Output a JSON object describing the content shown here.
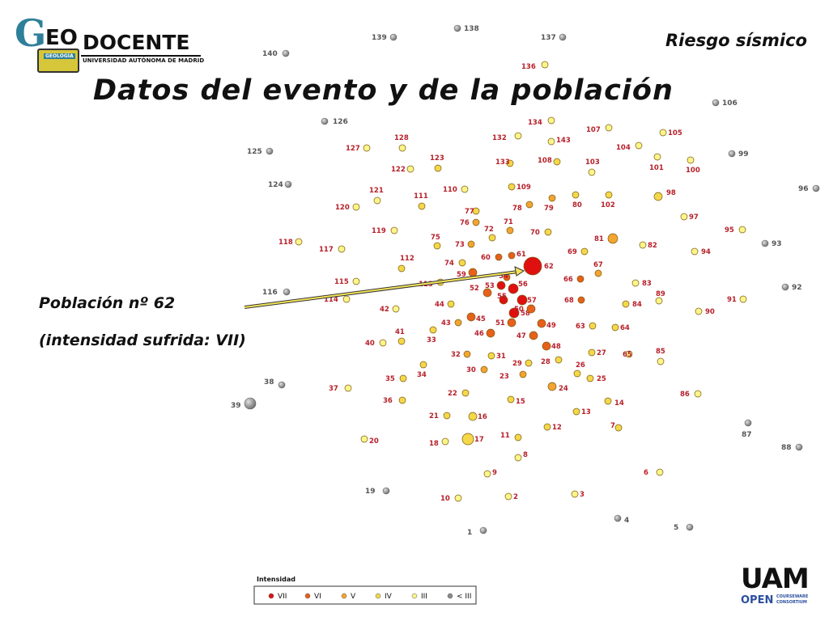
{
  "header": {
    "title": "Datos del evento y de la población",
    "subject": "Riesgo sísmico"
  },
  "logo": {
    "g_letter": "G",
    "eo": "EO",
    "docente": "DOCENTE",
    "university": "UNIVERSIDAD AUTÓNOMA DE MADRID",
    "badge": "GEOLOGÍA"
  },
  "info": {
    "population": "Población nº 62",
    "intensity": "(intensidad sufrida: VII)"
  },
  "legend": {
    "title": "Intensidad",
    "items": [
      {
        "label": "VII",
        "level": "VII"
      },
      {
        "label": "VI",
        "level": "VI"
      },
      {
        "label": "V",
        "level": "V"
      },
      {
        "label": "IV",
        "level": "IV"
      },
      {
        "label": "III",
        "level": "III"
      },
      {
        "label": "< III",
        "level": "<III"
      }
    ]
  },
  "uam_logo": {
    "big": "UAM",
    "open": "OPEN",
    "courseware": "COURSEWARE",
    "consortium": "CONSORTIUM"
  },
  "colors": {
    "VII": "#e01010",
    "VI": "#e8601a",
    "V": "#f2a531",
    "IV": "#f4d84a",
    "III": "#fcf58a",
    "<III": "#8a8a8a",
    "label": "#b8202a",
    "label_grey": "#555555"
  },
  "towns": [
    {
      "id": "138",
      "level": "<III"
    },
    {
      "id": "139",
      "level": "<III"
    },
    {
      "id": "137",
      "level": "<III"
    },
    {
      "id": "140",
      "level": "<III"
    },
    {
      "id": "136",
      "level": "III"
    },
    {
      "id": "106",
      "level": "<III"
    },
    {
      "id": "126",
      "level": "<III"
    },
    {
      "id": "134",
      "level": "III"
    },
    {
      "id": "107",
      "level": "III"
    },
    {
      "id": "105",
      "level": "III"
    },
    {
      "id": "132",
      "level": "III"
    },
    {
      "id": "143",
      "level": "III"
    },
    {
      "id": "128",
      "level": "III"
    },
    {
      "id": "125",
      "level": "<III"
    },
    {
      "id": "127",
      "level": "III"
    },
    {
      "id": "104",
      "level": "III"
    },
    {
      "id": "99",
      "level": "<III"
    },
    {
      "id": "123",
      "level": "IV"
    },
    {
      "id": "133",
      "level": "IV"
    },
    {
      "id": "108",
      "level": "IV"
    },
    {
      "id": "103",
      "level": "III"
    },
    {
      "id": "101",
      "level": "III"
    },
    {
      "id": "100",
      "level": "III"
    },
    {
      "id": "122",
      "level": "III"
    },
    {
      "id": "124",
      "level": "<III"
    },
    {
      "id": "96",
      "level": "<III"
    },
    {
      "id": "110",
      "level": "III"
    },
    {
      "id": "109",
      "level": "IV"
    },
    {
      "id": "121",
      "level": "III"
    },
    {
      "id": "111",
      "level": "IV"
    },
    {
      "id": "98",
      "level": "IV"
    },
    {
      "id": "120",
      "level": "III"
    },
    {
      "id": "78",
      "level": "V"
    },
    {
      "id": "80",
      "level": "IV"
    },
    {
      "id": "102",
      "level": "IV"
    },
    {
      "id": "77",
      "level": "IV"
    },
    {
      "id": "79",
      "level": "V"
    },
    {
      "id": "97",
      "level": "III"
    },
    {
      "id": "76",
      "level": "V"
    },
    {
      "id": "71",
      "level": "V"
    },
    {
      "id": "119",
      "level": "III"
    },
    {
      "id": "72",
      "level": "IV"
    },
    {
      "id": "70",
      "level": "IV"
    },
    {
      "id": "95",
      "level": "III"
    },
    {
      "id": "81",
      "level": "V"
    },
    {
      "id": "118",
      "level": "III"
    },
    {
      "id": "75",
      "level": "IV"
    },
    {
      "id": "73",
      "level": "V"
    },
    {
      "id": "82",
      "level": "III"
    },
    {
      "id": "93",
      "level": "<III"
    },
    {
      "id": "117",
      "level": "III"
    },
    {
      "id": "69",
      "level": "IV"
    },
    {
      "id": "94",
      "level": "III"
    },
    {
      "id": "112",
      "level": "IV"
    },
    {
      "id": "60",
      "level": "VI"
    },
    {
      "id": "61",
      "level": "VI"
    },
    {
      "id": "74",
      "level": "IV"
    },
    {
      "id": "62",
      "level": "VII"
    },
    {
      "id": "67",
      "level": "V"
    },
    {
      "id": "59",
      "level": "VI"
    },
    {
      "id": "54",
      "level": "VI"
    },
    {
      "id": "115",
      "level": "III"
    },
    {
      "id": "113",
      "level": "IV"
    },
    {
      "id": "66",
      "level": "VI"
    },
    {
      "id": "83",
      "level": "III"
    },
    {
      "id": "53",
      "level": "VII"
    },
    {
      "id": "56",
      "level": "VII"
    },
    {
      "id": "52",
      "level": "VI"
    },
    {
      "id": "116",
      "level": "<III"
    },
    {
      "id": "92",
      "level": "<III"
    },
    {
      "id": "89",
      "level": "III"
    },
    {
      "id": "55",
      "level": "VII"
    },
    {
      "id": "57",
      "level": "VII"
    },
    {
      "id": "68",
      "level": "VI"
    },
    {
      "id": "114",
      "level": "III"
    },
    {
      "id": "44",
      "level": "IV"
    },
    {
      "id": "91",
      "level": "III"
    },
    {
      "id": "84",
      "level": "IV"
    },
    {
      "id": "58",
      "level": "VII"
    },
    {
      "id": "50",
      "level": "VI"
    },
    {
      "id": "42",
      "level": "III"
    },
    {
      "id": "90",
      "level": "III"
    },
    {
      "id": "45",
      "level": "VI"
    },
    {
      "id": "43",
      "level": "V"
    },
    {
      "id": "51",
      "level": "VI"
    },
    {
      "id": "49",
      "level": "VI"
    },
    {
      "id": "63",
      "level": "IV"
    },
    {
      "id": "64",
      "level": "IV"
    },
    {
      "id": "41",
      "level": "IV"
    },
    {
      "id": "46",
      "level": "VI"
    },
    {
      "id": "47",
      "level": "VI"
    },
    {
      "id": "33",
      "level": "IV"
    },
    {
      "id": "40",
      "level": "III"
    },
    {
      "id": "48",
      "level": "VI"
    },
    {
      "id": "27",
      "level": "IV"
    },
    {
      "id": "85",
      "level": "III"
    },
    {
      "id": "65",
      "level": "III"
    },
    {
      "id": "32",
      "level": "V"
    },
    {
      "id": "31",
      "level": "IV"
    },
    {
      "id": "28",
      "level": "IV"
    },
    {
      "id": "29",
      "level": "IV"
    },
    {
      "id": "26",
      "level": "IV"
    },
    {
      "id": "30",
      "level": "V"
    },
    {
      "id": "34",
      "level": "IV"
    },
    {
      "id": "23",
      "level": "V"
    },
    {
      "id": "38",
      "level": "<III"
    },
    {
      "id": "35",
      "level": "IV"
    },
    {
      "id": "25",
      "level": "IV"
    },
    {
      "id": "37",
      "level": "III"
    },
    {
      "id": "24",
      "level": "V"
    },
    {
      "id": "22",
      "level": "IV"
    },
    {
      "id": "86",
      "level": "III"
    },
    {
      "id": "36",
      "level": "IV"
    },
    {
      "id": "39",
      "level": "<III"
    },
    {
      "id": "15",
      "level": "IV"
    },
    {
      "id": "14",
      "level": "IV"
    },
    {
      "id": "13",
      "level": "IV"
    },
    {
      "id": "21",
      "level": "IV"
    },
    {
      "id": "16",
      "level": "IV"
    },
    {
      "id": "87",
      "level": "<III"
    },
    {
      "id": "12",
      "level": "IV"
    },
    {
      "id": "7",
      "level": "IV"
    },
    {
      "id": "11",
      "level": "IV"
    },
    {
      "id": "20",
      "level": "III"
    },
    {
      "id": "17",
      "level": "IV"
    },
    {
      "id": "18",
      "level": "III"
    },
    {
      "id": "88",
      "level": "<III"
    },
    {
      "id": "8",
      "level": "III"
    },
    {
      "id": "6",
      "level": "III"
    },
    {
      "id": "9",
      "level": "III"
    },
    {
      "id": "19",
      "level": "<III"
    },
    {
      "id": "2",
      "level": "III"
    },
    {
      "id": "3",
      "level": "III"
    },
    {
      "id": "10",
      "level": "III"
    },
    {
      "id": "4",
      "level": "<III"
    },
    {
      "id": "5",
      "level": "<III"
    },
    {
      "id": "1",
      "level": "<III"
    }
  ]
}
